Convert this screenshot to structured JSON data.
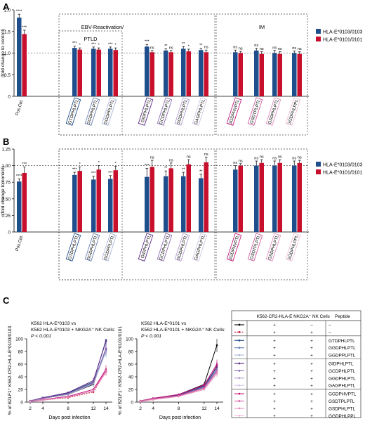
{
  "panels": {
    "A": "A",
    "B": "B",
    "C": "C"
  },
  "colors": {
    "blue": "#1f4e8c",
    "red": "#c8102e",
    "control": "#000000",
    "gtdphlptl": "#1f4e8c",
    "ggdphlptl": "#6a7fb5",
    "ggdpplptl": "#a9b6d8",
    "gidphlptl": "#5b2a86",
    "gcdphlptl": "#8c6ab0",
    "ggdphlptl2": "#b49cd0",
    "gagphlptl": "#d3c4e6",
    "ggdphvptl": "#c4177a",
    "gsdtplptl": "#d65aa0",
    "gsdphlptl": "#e58fbf",
    "ggdphlppl": "#f2bcd8"
  },
  "group_boxes": {
    "ebv": "EBV-Reactivation/",
    "ptld": "PTLD",
    "im": "IM"
  },
  "legend": [
    {
      "name": "HLA-E*0103/0103",
      "color": "#1f4e8c"
    },
    {
      "name": "HLA-E*0101/0101",
      "color": "#c8102e"
    }
  ],
  "chart_data": [
    {
      "type": "bar",
      "panel": "A",
      "ylabel_line1": "HLA E MFI",
      "ylabel_line2": "(fold change to control)",
      "ylim": [
        0,
        2.0
      ],
      "yticks": [
        "0",
        "0.5",
        "1.0",
        "1.5",
        "2.0"
      ],
      "categories": [
        "Pos.Ctrl.",
        "GTDPHLPTL",
        "GGDPHLPTL",
        "GGDPPLPTL",
        "GIDPHLPTL",
        "GCDPHLPTL",
        "GGDPHLPTL",
        "GAGPHLPTL",
        "GGDPHVPTL",
        "GSDTPLPTL",
        "GSDPHLPTL",
        "GGDPHLPPL"
      ],
      "series": [
        {
          "name": "HLA-E*0103/0103",
          "values": [
            1.82,
            1.12,
            1.1,
            1.1,
            1.15,
            1.06,
            1.1,
            1.07,
            1.02,
            1.06,
            1.0,
            1.0
          ],
          "errors": [
            0.08,
            0.04,
            0.04,
            0.04,
            0.05,
            0.04,
            0.05,
            0.04,
            0.05,
            0.05,
            0.06,
            0.05
          ]
        },
        {
          "name": "HLA-E*0101/0101",
          "values": [
            1.44,
            1.08,
            1.08,
            1.07,
            1.02,
            1.02,
            1.04,
            1.02,
            1.0,
            0.98,
            0.98,
            0.98
          ],
          "errors": [
            0.09,
            0.04,
            0.04,
            0.05,
            0.04,
            0.04,
            0.05,
            0.05,
            0.04,
            0.05,
            0.05,
            0.05
          ]
        }
      ],
      "significance": {
        "HLA-E*0103/0103": [
          "****",
          "***",
          "***",
          "***",
          "***",
          "**",
          "**",
          "**",
          "ns",
          "ns",
          "ns",
          "ns"
        ],
        "HLA-E*0101/0101": [
          "***",
          "*",
          "*",
          "*",
          "ns",
          "ns",
          "*",
          "ns",
          "ns",
          "ns",
          "ns",
          "ns"
        ]
      },
      "reference_line": 1.0
    },
    {
      "type": "bar",
      "panel": "B",
      "ylabel_line1": "CD107a expressing CD56⁺ NKG2A⁺ NK cells",
      "ylabel_line2": "(fold change to control)",
      "ylim": [
        0,
        1.25
      ],
      "yticks": [
        "0",
        "0.25",
        "0.50",
        "0.75",
        "1.00",
        "1.25"
      ],
      "categories": [
        "Pos.Ctrl.",
        "GTDPHLPTL",
        "GGDPHLPTL",
        "GGDPPLPTL",
        "GIDPHLPTL",
        "GCDPHLPTL",
        "GGDPHLPTL",
        "GAGPHLPTL",
        "GGDPHVPTL",
        "GSDTPLPTL",
        "GSDPHLPTL",
        "GGDPHLPPL"
      ],
      "series": [
        {
          "name": "HLA-E*0103/0103",
          "values": [
            0.76,
            0.86,
            0.79,
            0.8,
            0.83,
            0.84,
            0.84,
            0.81,
            0.94,
            1.0,
            1.0,
            1.0
          ],
          "errors": [
            0.04,
            0.04,
            0.05,
            0.05,
            0.13,
            0.08,
            0.06,
            0.06,
            0.06,
            0.07,
            0.07,
            0.07
          ]
        },
        {
          "name": "HLA-E*0101/0101",
          "values": [
            0.89,
            0.92,
            0.94,
            0.93,
            0.98,
            0.96,
            1.02,
            1.05,
            1.0,
            1.04,
            1.04,
            1.04
          ],
          "errors": [
            0.09,
            0.06,
            0.06,
            0.06,
            0.1,
            0.08,
            0.07,
            0.08,
            0.03,
            0.05,
            0.05,
            0.04
          ]
        }
      ],
      "significance": {
        "HLA-E*0103/0103": [
          "****",
          "***",
          "***",
          "***",
          "***",
          "**",
          "**",
          "**",
          "ns",
          "ns",
          "ns",
          "ns"
        ],
        "HLA-E*0101/0101": [
          "***",
          "*",
          "*",
          "*",
          "ns",
          "ns",
          "ns",
          "ns",
          "ns",
          "ns",
          "ns",
          "ns"
        ]
      },
      "reference_line": 1.0
    },
    {
      "type": "line",
      "panel": "C-left",
      "title_lines": [
        "K562 HLA-E*0103 vs",
        "K562 HLA-E*0103 + NKG2A⁺ NK Cells:",
        "P < 0.001"
      ],
      "ylabel": "% of BZLF1⁺ K562-CR2-HLA-E*0103/0103",
      "xlabel": "Days post infection",
      "x": [
        2,
        4,
        8,
        12,
        14
      ],
      "xticks": [
        "2",
        "4",
        "8",
        "12",
        "14"
      ],
      "ylim": [
        0,
        100
      ],
      "yticks": [
        "0",
        "20",
        "40",
        "60",
        "80",
        "100"
      ],
      "series": [
        {
          "color": "#000000",
          "values": [
            2,
            6,
            12,
            28,
            84
          ],
          "dashed": false
        },
        {
          "color": "#c8102e",
          "values": [
            1,
            3,
            7,
            16,
            48
          ],
          "dashed": true
        },
        {
          "color": "#1f4e8c",
          "values": [
            2,
            7,
            14,
            32,
            98
          ],
          "dashed": false
        },
        {
          "color": "#6a7fb5",
          "values": [
            2,
            6,
            13,
            30,
            82
          ],
          "dashed": false
        },
        {
          "color": "#a9b6d8",
          "values": [
            2,
            6,
            12,
            29,
            80
          ],
          "dashed": false
        },
        {
          "color": "#5b2a86",
          "values": [
            2,
            7,
            15,
            34,
            96
          ],
          "dashed": false
        },
        {
          "color": "#8c6ab0",
          "values": [
            2,
            6,
            13,
            31,
            85
          ],
          "dashed": false
        },
        {
          "color": "#c4177a",
          "values": [
            1,
            4,
            9,
            20,
            52
          ],
          "dashed": false
        },
        {
          "color": "#d65aa0",
          "values": [
            1,
            4,
            8,
            18,
            50
          ],
          "dashed": false
        },
        {
          "color": "#e58fbf",
          "values": [
            1,
            3,
            8,
            18,
            47
          ],
          "dashed": false
        }
      ]
    },
    {
      "type": "line",
      "panel": "C-right",
      "title_lines": [
        "K562 HLA-E*0101 vs",
        "K562 HLA-E*0101 + NKG2A⁺ NK Cells:",
        "P < 0.001"
      ],
      "ylabel": "% of BZLF1⁺ K562-CR2-HLA-E*0101/0101",
      "xlabel": "Days post infection",
      "x": [
        2,
        4,
        8,
        12,
        14
      ],
      "xticks": [
        "2",
        "4",
        "8",
        "12",
        "14"
      ],
      "ylim": [
        0,
        100
      ],
      "yticks": [
        "0",
        "20",
        "40",
        "60",
        "80",
        "100"
      ],
      "series": [
        {
          "color": "#000000",
          "values": [
            2,
            6,
            12,
            28,
            90
          ],
          "dashed": false
        },
        {
          "color": "#c8102e",
          "values": [
            1,
            4,
            9,
            22,
            58
          ],
          "dashed": true
        },
        {
          "color": "#1f4e8c",
          "values": [
            2,
            5,
            11,
            25,
            55
          ],
          "dashed": false
        },
        {
          "color": "#6a7fb5",
          "values": [
            2,
            5,
            10,
            24,
            52
          ],
          "dashed": false
        },
        {
          "color": "#5b2a86",
          "values": [
            2,
            5,
            11,
            26,
            56
          ],
          "dashed": false
        },
        {
          "color": "#8c6ab0",
          "values": [
            2,
            5,
            10,
            23,
            50
          ],
          "dashed": false
        },
        {
          "color": "#c4177a",
          "values": [
            2,
            6,
            12,
            27,
            60
          ],
          "dashed": false
        },
        {
          "color": "#d65aa0",
          "values": [
            2,
            5,
            10,
            22,
            48
          ],
          "dashed": false
        },
        {
          "color": "#e58fbf",
          "values": [
            1,
            4,
            9,
            20,
            45
          ],
          "dashed": false
        }
      ]
    }
  ],
  "table": {
    "headers": [
      "K562-CR2-HLA-E",
      "NKG2A⁺ NK Cells",
      "Peptide"
    ],
    "rows": [
      {
        "color": "#000000",
        "dashed": false,
        "k562": "+",
        "nk": "–",
        "peptide": "–"
      },
      {
        "color": "#c8102e",
        "dashed": true,
        "k562": "+",
        "nk": "+",
        "peptide": "–"
      },
      {
        "color": "#1f4e8c",
        "dashed": false,
        "k562": "+",
        "nk": "+",
        "peptide": "GTDPHLPTL"
      },
      {
        "color": "#6a7fb5",
        "dashed": false,
        "k562": "+",
        "nk": "+",
        "peptide": "GGDPHLPTL"
      },
      {
        "color": "#a9b6d8",
        "dashed": false,
        "k562": "+",
        "nk": "+",
        "peptide": "GGDPPLPTL"
      },
      {
        "color": "#5b2a86",
        "dashed": false,
        "k562": "+",
        "nk": "+",
        "peptide": "GIDPHLPTL"
      },
      {
        "color": "#8c6ab0",
        "dashed": false,
        "k562": "+",
        "nk": "+",
        "peptide": "GCDPHLPTL"
      },
      {
        "color": "#b49cd0",
        "dashed": false,
        "k562": "+",
        "nk": "+",
        "peptide": "GGDPHLPTL"
      },
      {
        "color": "#d3c4e6",
        "dashed": false,
        "k562": "+",
        "nk": "+",
        "peptide": "GAGPHLPTL"
      },
      {
        "color": "#c4177a",
        "dashed": false,
        "k562": "+",
        "nk": "+",
        "peptide": "GGDPHVPTL"
      },
      {
        "color": "#d65aa0",
        "dashed": false,
        "k562": "+",
        "nk": "+",
        "peptide": "GSDTPLPTL"
      },
      {
        "color": "#e58fbf",
        "dashed": false,
        "k562": "+",
        "nk": "+",
        "peptide": "GSDPHLPTL"
      },
      {
        "color": "#f2bcd8",
        "dashed": false,
        "k562": "+",
        "nk": "+",
        "peptide": "GGDPHLPPL"
      }
    ]
  }
}
